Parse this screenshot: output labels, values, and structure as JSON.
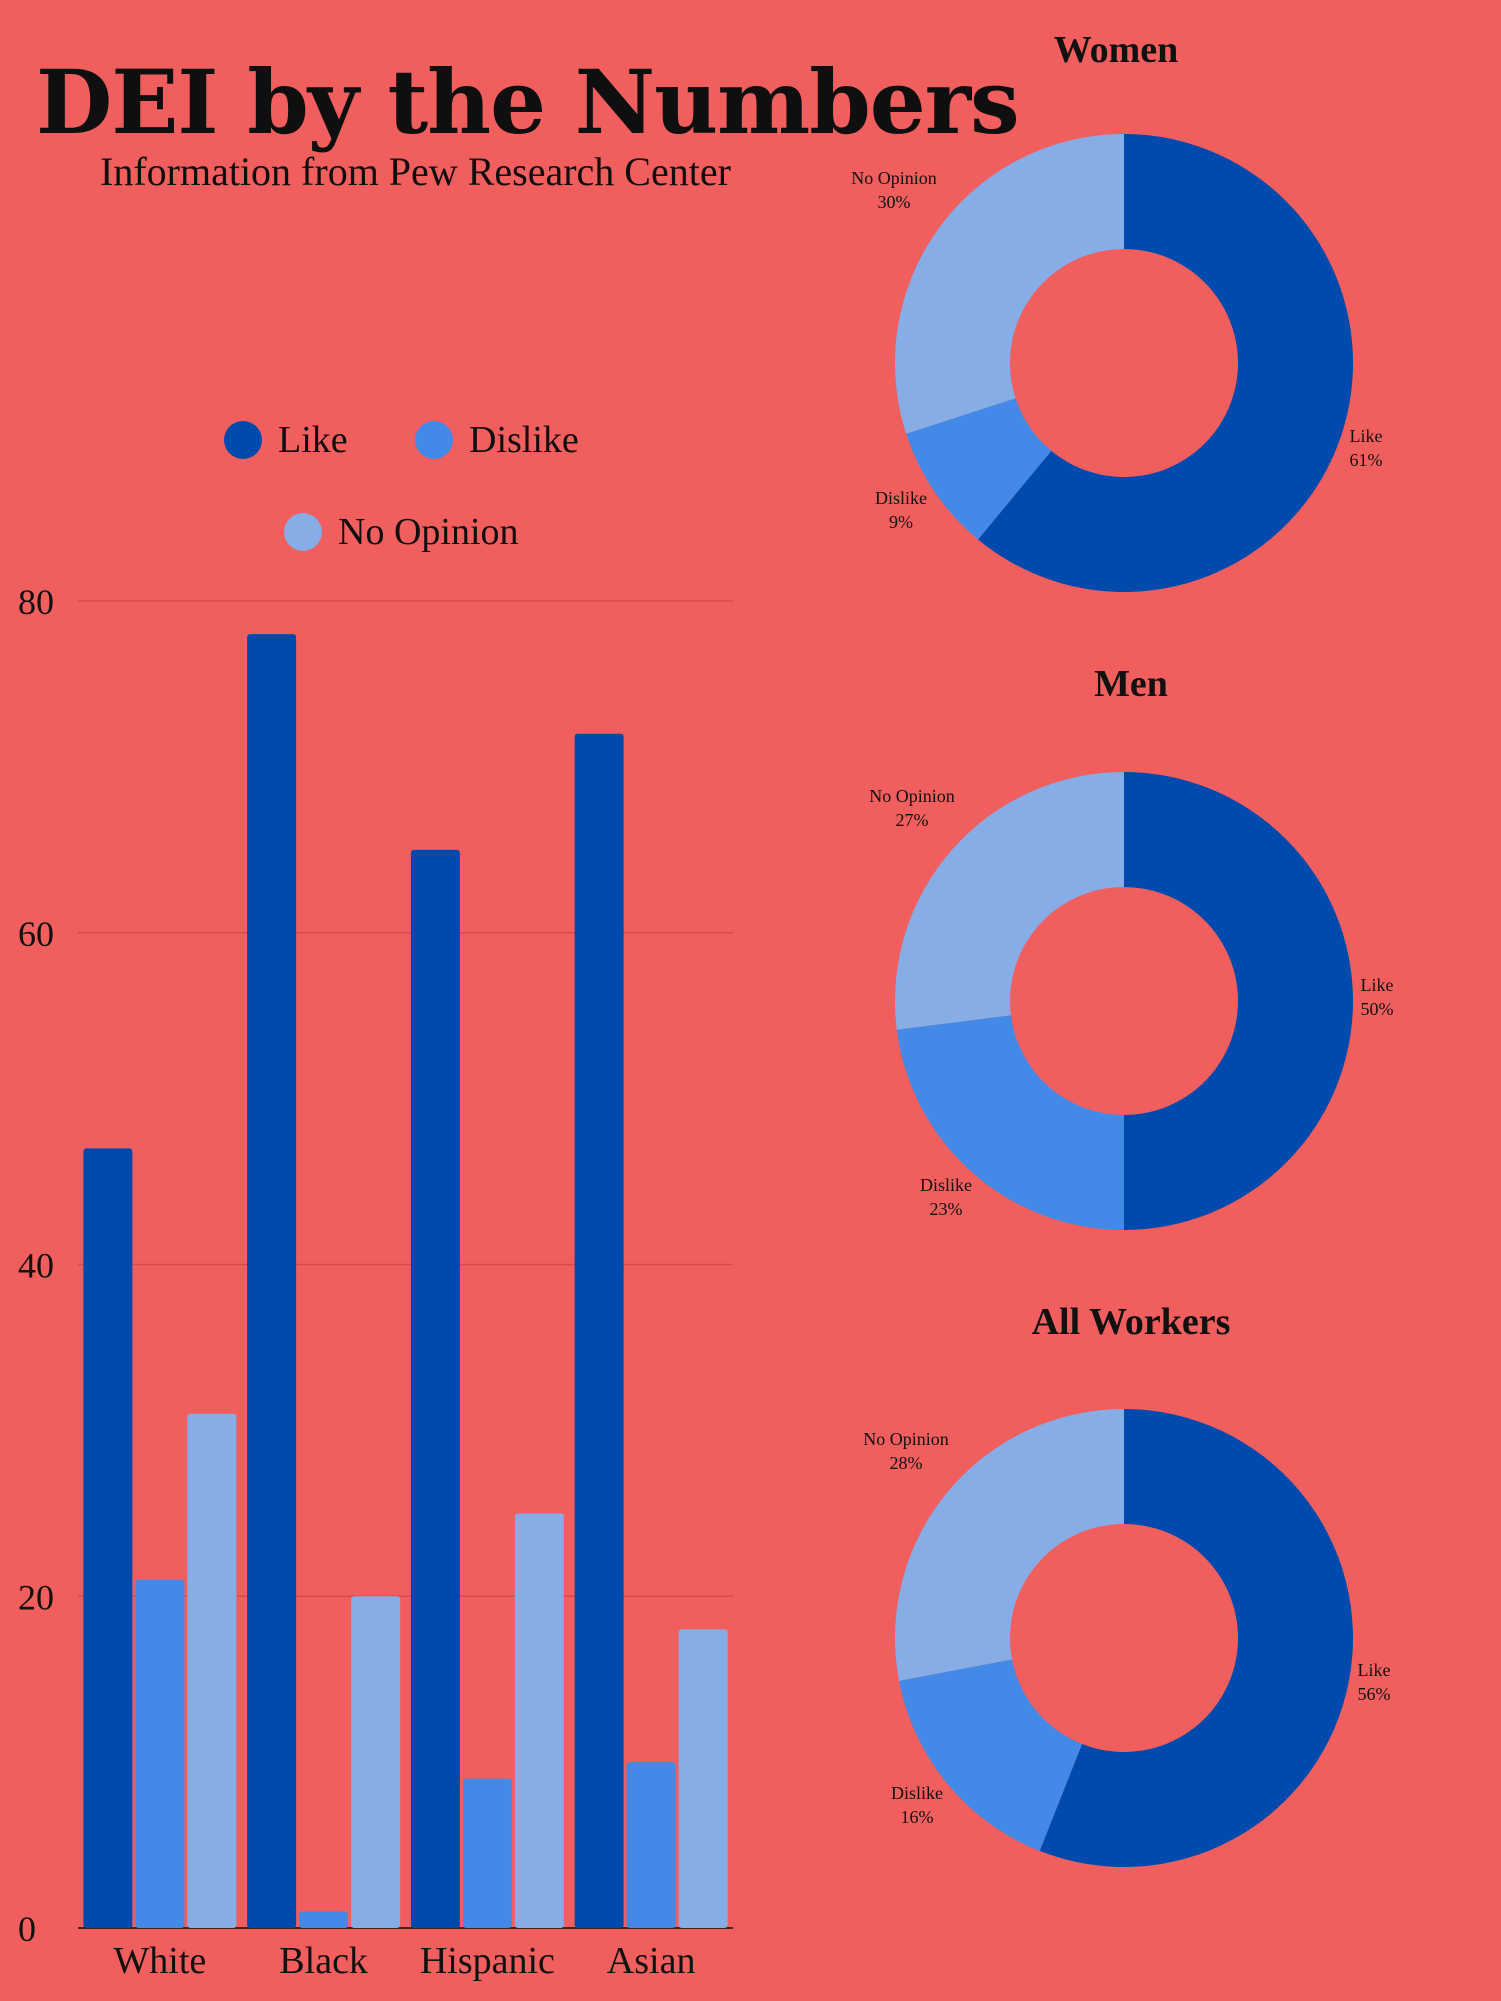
{
  "title": "DEI by the Numbers",
  "subtitle": "Information from Pew Research Center",
  "colors": {
    "background": "#f05f5e",
    "like": "#004aad",
    "dislike": "#4289e8",
    "no_opinion": "#86ade6"
  },
  "legend": [
    {
      "label": "Like",
      "color": "#004aad"
    },
    {
      "label": "Dislike",
      "color": "#4289e8"
    },
    {
      "label": "No Opinion",
      "color": "#86ade6"
    }
  ],
  "chart_data": [
    {
      "type": "bar",
      "categories": [
        "White",
        "Black",
        "Hispanic",
        "Asian"
      ],
      "series": [
        {
          "name": "Like",
          "values": [
            47,
            78,
            65,
            72
          ]
        },
        {
          "name": "Dislike",
          "values": [
            21,
            1,
            9,
            10
          ]
        },
        {
          "name": "No Opinion",
          "values": [
            31,
            20,
            25,
            18
          ]
        }
      ],
      "ylim": [
        0,
        80
      ],
      "yticks": [
        0,
        20,
        40,
        60,
        80
      ],
      "grid": true,
      "legend_position": "top"
    },
    {
      "type": "pie",
      "title": "Women",
      "slices": [
        {
          "label": "Like",
          "value": 61,
          "display": "61%"
        },
        {
          "label": "Dislike",
          "value": 9,
          "display": "9%"
        },
        {
          "label": "No Opinion",
          "value": 30,
          "display": "30%"
        }
      ]
    },
    {
      "type": "pie",
      "title": "Men",
      "slices": [
        {
          "label": "Like",
          "value": 50,
          "display": "50%"
        },
        {
          "label": "Dislike",
          "value": 23,
          "display": "23%"
        },
        {
          "label": "No Opinion",
          "value": 27,
          "display": "27%"
        }
      ]
    },
    {
      "type": "pie",
      "title": "All Workers",
      "slices": [
        {
          "label": "Like",
          "value": 56,
          "display": "56%"
        },
        {
          "label": "Dislike",
          "value": 16,
          "display": "16%"
        },
        {
          "label": "No Opinion",
          "value": 28,
          "display": "28%"
        }
      ]
    }
  ]
}
